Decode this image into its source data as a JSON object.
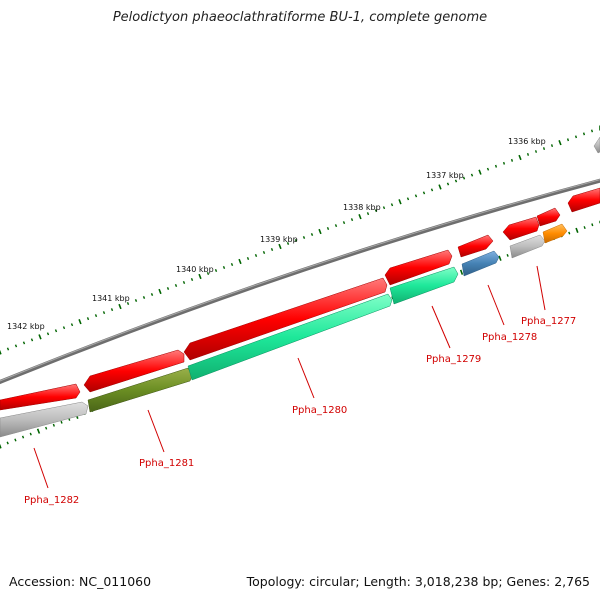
{
  "title": "Pelodictyon phaeoclathratiforme BU-1, complete genome",
  "footer": {
    "accession": "Accession: NC_011060",
    "info": "Topology: circular; Length: 3,018,238 bp; Genes: 2,765"
  },
  "scale": {
    "labels": [
      "1336 kbp",
      "1337 kbp",
      "1338 kbp",
      "1339 kbp",
      "1340 kbp",
      "1341 kbp",
      "1342 kbp"
    ]
  },
  "genes": [
    {
      "name": "Ppha_1277",
      "color": "#ff8c00"
    },
    {
      "name": "Ppha_1278",
      "color": "#4682b4"
    },
    {
      "name": "Ppha_1279",
      "color": "#00e080"
    },
    {
      "name": "Ppha_1280",
      "color": "#00e080"
    },
    {
      "name": "Ppha_1281",
      "color": "#6b8e23"
    },
    {
      "name": "Ppha_1282",
      "color": "#b0b0b0"
    }
  ],
  "colors": {
    "cds": "#ff0000",
    "backbone": "#808080",
    "tick": "#006400",
    "label": "#d10000"
  }
}
